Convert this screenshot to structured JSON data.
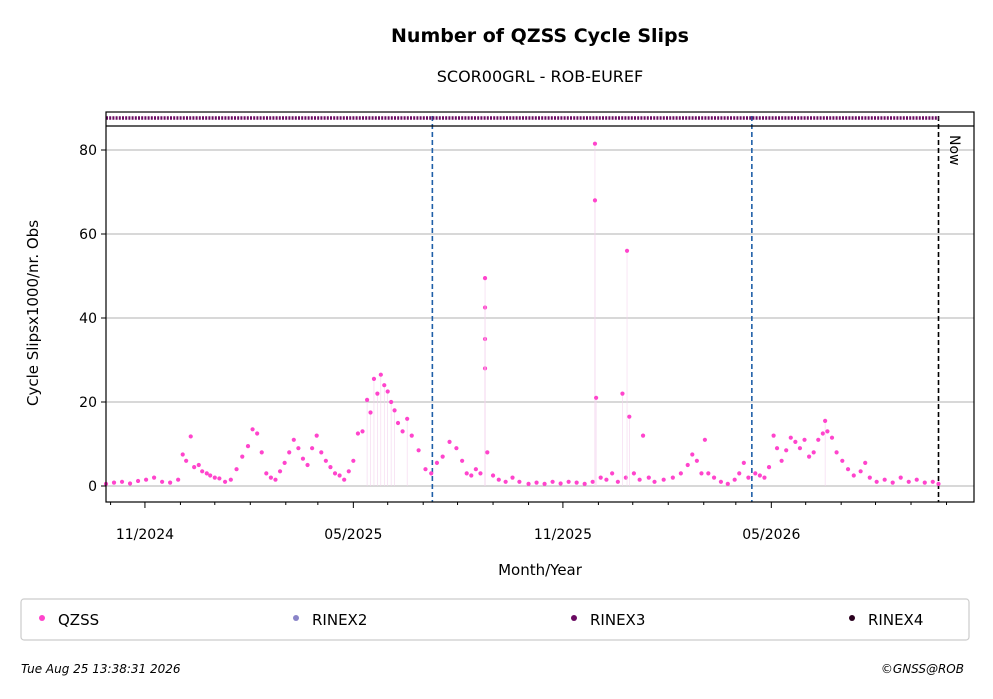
{
  "chart_data": {
    "type": "scatter",
    "title": "Number of QZSS Cycle Slips",
    "subtitle": "SCOR00GRL - ROB-EUREF",
    "xlabel": "Month/Year",
    "ylabel": "Cycle Slipsx1000/nr. Obs",
    "xlim": [
      "2024-08-28",
      "2026-09-25"
    ],
    "ylim": [
      -4,
      86
    ],
    "yticks": [
      0,
      20,
      40,
      60,
      80
    ],
    "xticks": [
      {
        "date": "2024-10-01",
        "label": "11/2024"
      },
      {
        "date": "2025-04-01",
        "label": "05/2025"
      },
      {
        "date": "2025-10-01",
        "label": "11/2025"
      },
      {
        "date": "2026-04-01",
        "label": "05/2026"
      }
    ],
    "minor_xticks": [
      "2024-09-01",
      "2024-11-01",
      "2024-12-01",
      "2025-01-01",
      "2025-02-01",
      "2025-03-01",
      "2025-05-01",
      "2025-06-01",
      "2025-07-01",
      "2025-08-01",
      "2025-09-01",
      "2025-11-01",
      "2025-12-01",
      "2026-01-01",
      "2026-02-01",
      "2026-03-01",
      "2026-05-01",
      "2026-06-01",
      "2026-07-01",
      "2026-08-01",
      "2026-09-01"
    ],
    "grid_y": true,
    "vlines": [
      {
        "date": "2025-06-09",
        "color": "#1f5fa8",
        "style": "dashed"
      },
      {
        "date": "2026-03-15",
        "color": "#1f5fa8",
        "style": "dashed"
      },
      {
        "date": "2026-08-25",
        "color": "#000000",
        "style": "dashed",
        "label": "Now"
      }
    ],
    "rinex_band": {
      "series": "RINEX3",
      "start": "2024-08-28",
      "end": "2026-08-25",
      "color": "#6a0a62"
    },
    "series": [
      {
        "name": "QZSS",
        "color": "#ff44cc",
        "points": [
          [
            "2024-08-28",
            0.5
          ],
          [
            "2024-09-04",
            0.8
          ],
          [
            "2024-09-11",
            1.0
          ],
          [
            "2024-09-18",
            0.6
          ],
          [
            "2024-09-25",
            1.2
          ],
          [
            "2024-10-02",
            1.5
          ],
          [
            "2024-10-09",
            2.0
          ],
          [
            "2024-10-16",
            1.0
          ],
          [
            "2024-10-23",
            0.8
          ],
          [
            "2024-10-30",
            1.5
          ],
          [
            "2024-11-03",
            7.5
          ],
          [
            "2024-11-06",
            6.0
          ],
          [
            "2024-11-10",
            11.8
          ],
          [
            "2024-11-13",
            4.5
          ],
          [
            "2024-11-17",
            5.0
          ],
          [
            "2024-11-20",
            3.5
          ],
          [
            "2024-11-24",
            3.0
          ],
          [
            "2024-11-27",
            2.5
          ],
          [
            "2024-12-01",
            2.0
          ],
          [
            "2024-12-05",
            1.8
          ],
          [
            "2024-12-10",
            1.0
          ],
          [
            "2024-12-15",
            1.5
          ],
          [
            "2024-12-20",
            4.0
          ],
          [
            "2024-12-25",
            7.0
          ],
          [
            "2024-12-30",
            9.5
          ],
          [
            "2025-01-03",
            13.5
          ],
          [
            "2025-01-07",
            12.5
          ],
          [
            "2025-01-11",
            8.0
          ],
          [
            "2025-01-15",
            3.0
          ],
          [
            "2025-01-19",
            2.0
          ],
          [
            "2025-01-23",
            1.5
          ],
          [
            "2025-01-27",
            3.5
          ],
          [
            "2025-01-31",
            5.5
          ],
          [
            "2025-02-04",
            8.0
          ],
          [
            "2025-02-08",
            11.0
          ],
          [
            "2025-02-12",
            9.0
          ],
          [
            "2025-02-16",
            6.5
          ],
          [
            "2025-02-20",
            5.0
          ],
          [
            "2025-02-24",
            9.0
          ],
          [
            "2025-02-28",
            12.0
          ],
          [
            "2025-03-04",
            8.0
          ],
          [
            "2025-03-08",
            6.0
          ],
          [
            "2025-03-12",
            4.5
          ],
          [
            "2025-03-16",
            3.0
          ],
          [
            "2025-03-20",
            2.5
          ],
          [
            "2025-03-24",
            1.5
          ],
          [
            "2025-03-28",
            3.5
          ],
          [
            "2025-04-01",
            6.0
          ],
          [
            "2025-04-05",
            12.5
          ],
          [
            "2025-04-09",
            13.0
          ],
          [
            "2025-04-13",
            20.5
          ],
          [
            "2025-04-16",
            17.5
          ],
          [
            "2025-04-19",
            25.5
          ],
          [
            "2025-04-22",
            22.0
          ],
          [
            "2025-04-25",
            26.5
          ],
          [
            "2025-04-28",
            24.0
          ],
          [
            "2025-05-01",
            22.5
          ],
          [
            "2025-05-04",
            20.0
          ],
          [
            "2025-05-07",
            18.0
          ],
          [
            "2025-05-10",
            15.0
          ],
          [
            "2025-05-14",
            13.0
          ],
          [
            "2025-05-18",
            16.0
          ],
          [
            "2025-05-22",
            12.0
          ],
          [
            "2025-05-28",
            8.5
          ],
          [
            "2025-06-03",
            4.0
          ],
          [
            "2025-06-08",
            3.0
          ],
          [
            "2025-06-13",
            5.5
          ],
          [
            "2025-06-18",
            7.0
          ],
          [
            "2025-06-24",
            10.5
          ],
          [
            "2025-06-30",
            9.0
          ],
          [
            "2025-07-05",
            6.0
          ],
          [
            "2025-07-09",
            3.0
          ],
          [
            "2025-07-13",
            2.5
          ],
          [
            "2025-07-17",
            4.0
          ],
          [
            "2025-07-21",
            3.0
          ],
          [
            "2025-07-25",
            28.0
          ],
          [
            "2025-07-25",
            35.0
          ],
          [
            "2025-07-25",
            42.5
          ],
          [
            "2025-07-25",
            49.5
          ],
          [
            "2025-07-27",
            8.0
          ],
          [
            "2025-08-01",
            2.5
          ],
          [
            "2025-08-06",
            1.5
          ],
          [
            "2025-08-12",
            1.0
          ],
          [
            "2025-08-18",
            2.0
          ],
          [
            "2025-08-24",
            1.0
          ],
          [
            "2025-09-01",
            0.5
          ],
          [
            "2025-09-08",
            0.8
          ],
          [
            "2025-09-15",
            0.5
          ],
          [
            "2025-09-22",
            1.0
          ],
          [
            "2025-09-29",
            0.6
          ],
          [
            "2025-10-06",
            1.0
          ],
          [
            "2025-10-13",
            0.8
          ],
          [
            "2025-10-20",
            0.5
          ],
          [
            "2025-10-27",
            1.0
          ],
          [
            "2025-10-29",
            81.5
          ],
          [
            "2025-10-29",
            68.0
          ],
          [
            "2025-10-30",
            21.0
          ],
          [
            "2025-11-03",
            2.0
          ],
          [
            "2025-11-08",
            1.5
          ],
          [
            "2025-11-13",
            3.0
          ],
          [
            "2025-11-18",
            1.0
          ],
          [
            "2025-11-22",
            22.0
          ],
          [
            "2025-11-25",
            2.0
          ],
          [
            "2025-11-26",
            56.0
          ],
          [
            "2025-11-28",
            16.5
          ],
          [
            "2025-12-02",
            3.0
          ],
          [
            "2025-12-07",
            1.5
          ],
          [
            "2025-12-10",
            12.0
          ],
          [
            "2025-12-15",
            2.0
          ],
          [
            "2025-12-20",
            1.0
          ],
          [
            "2025-12-28",
            1.5
          ],
          [
            "2026-01-05",
            2.0
          ],
          [
            "2026-01-12",
            3.0
          ],
          [
            "2026-01-18",
            5.0
          ],
          [
            "2026-01-22",
            7.5
          ],
          [
            "2026-01-26",
            6.0
          ],
          [
            "2026-01-30",
            3.0
          ],
          [
            "2026-02-02",
            11.0
          ],
          [
            "2026-02-05",
            3.0
          ],
          [
            "2026-02-10",
            2.0
          ],
          [
            "2026-02-16",
            1.0
          ],
          [
            "2026-02-22",
            0.5
          ],
          [
            "2026-02-28",
            1.5
          ],
          [
            "2026-03-04",
            3.0
          ],
          [
            "2026-03-08",
            5.5
          ],
          [
            "2026-03-12",
            2.0
          ],
          [
            "2026-03-18",
            3.0
          ],
          [
            "2026-03-22",
            2.5
          ],
          [
            "2026-03-26",
            2.0
          ],
          [
            "2026-03-30",
            4.5
          ],
          [
            "2026-04-03",
            12.0
          ],
          [
            "2026-04-06",
            9.0
          ],
          [
            "2026-04-10",
            6.0
          ],
          [
            "2026-04-14",
            8.5
          ],
          [
            "2026-04-18",
            11.5
          ],
          [
            "2026-04-22",
            10.5
          ],
          [
            "2026-04-26",
            9.0
          ],
          [
            "2026-04-30",
            11.0
          ],
          [
            "2026-05-04",
            7.0
          ],
          [
            "2026-05-08",
            8.0
          ],
          [
            "2026-05-12",
            11.0
          ],
          [
            "2026-05-16",
            12.5
          ],
          [
            "2026-05-18",
            15.5
          ],
          [
            "2026-05-20",
            13.0
          ],
          [
            "2026-05-24",
            11.5
          ],
          [
            "2026-05-28",
            8.0
          ],
          [
            "2026-06-02",
            6.0
          ],
          [
            "2026-06-07",
            4.0
          ],
          [
            "2026-06-12",
            2.5
          ],
          [
            "2026-06-18",
            3.5
          ],
          [
            "2026-06-22",
            5.5
          ],
          [
            "2026-06-26",
            2.0
          ],
          [
            "2026-07-02",
            1.0
          ],
          [
            "2026-07-09",
            1.5
          ],
          [
            "2026-07-16",
            0.8
          ],
          [
            "2026-07-23",
            2.0
          ],
          [
            "2026-07-30",
            1.0
          ],
          [
            "2026-08-06",
            1.5
          ],
          [
            "2026-08-13",
            0.8
          ],
          [
            "2026-08-20",
            1.0
          ],
          [
            "2026-08-25",
            0.5
          ]
        ]
      },
      {
        "name": "RINEX2",
        "color": "#8a84c8",
        "points": []
      },
      {
        "name": "RINEX3",
        "color": "#6a0a62",
        "points": []
      },
      {
        "name": "RINEX4",
        "color": "#2a001e",
        "points": []
      }
    ],
    "legend_position": "bottom"
  },
  "footer": {
    "timestamp": "Tue Aug 25 13:38:31 2026",
    "credit": "©GNSS@ROB"
  }
}
